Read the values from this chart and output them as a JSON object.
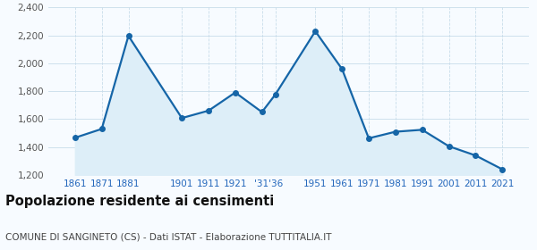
{
  "years": [
    1861,
    1871,
    1881,
    1901,
    1911,
    1921,
    1931,
    1936,
    1951,
    1961,
    1971,
    1981,
    1991,
    2001,
    2011,
    2021
  ],
  "population": [
    1467,
    1530,
    2197,
    1608,
    1661,
    1791,
    1651,
    1776,
    2230,
    1959,
    1463,
    1510,
    1524,
    1406,
    1340,
    1241
  ],
  "line_color": "#1565a7",
  "fill_color": "#ddeef8",
  "marker_color": "#1565a7",
  "background_color": "#f7fbff",
  "grid_color": "#c8dcea",
  "ylim": [
    1200,
    2400
  ],
  "yticks": [
    1200,
    1400,
    1600,
    1800,
    2000,
    2200,
    2400
  ],
  "title": "Popolazione residente ai censimenti",
  "subtitle": "COMUNE DI SANGINETO (CS) - Dati ISTAT - Elaborazione TUTTITALIA.IT",
  "title_fontsize": 10.5,
  "subtitle_fontsize": 7.5,
  "xtick_color": "#2266bb",
  "ytick_color": "#555555"
}
